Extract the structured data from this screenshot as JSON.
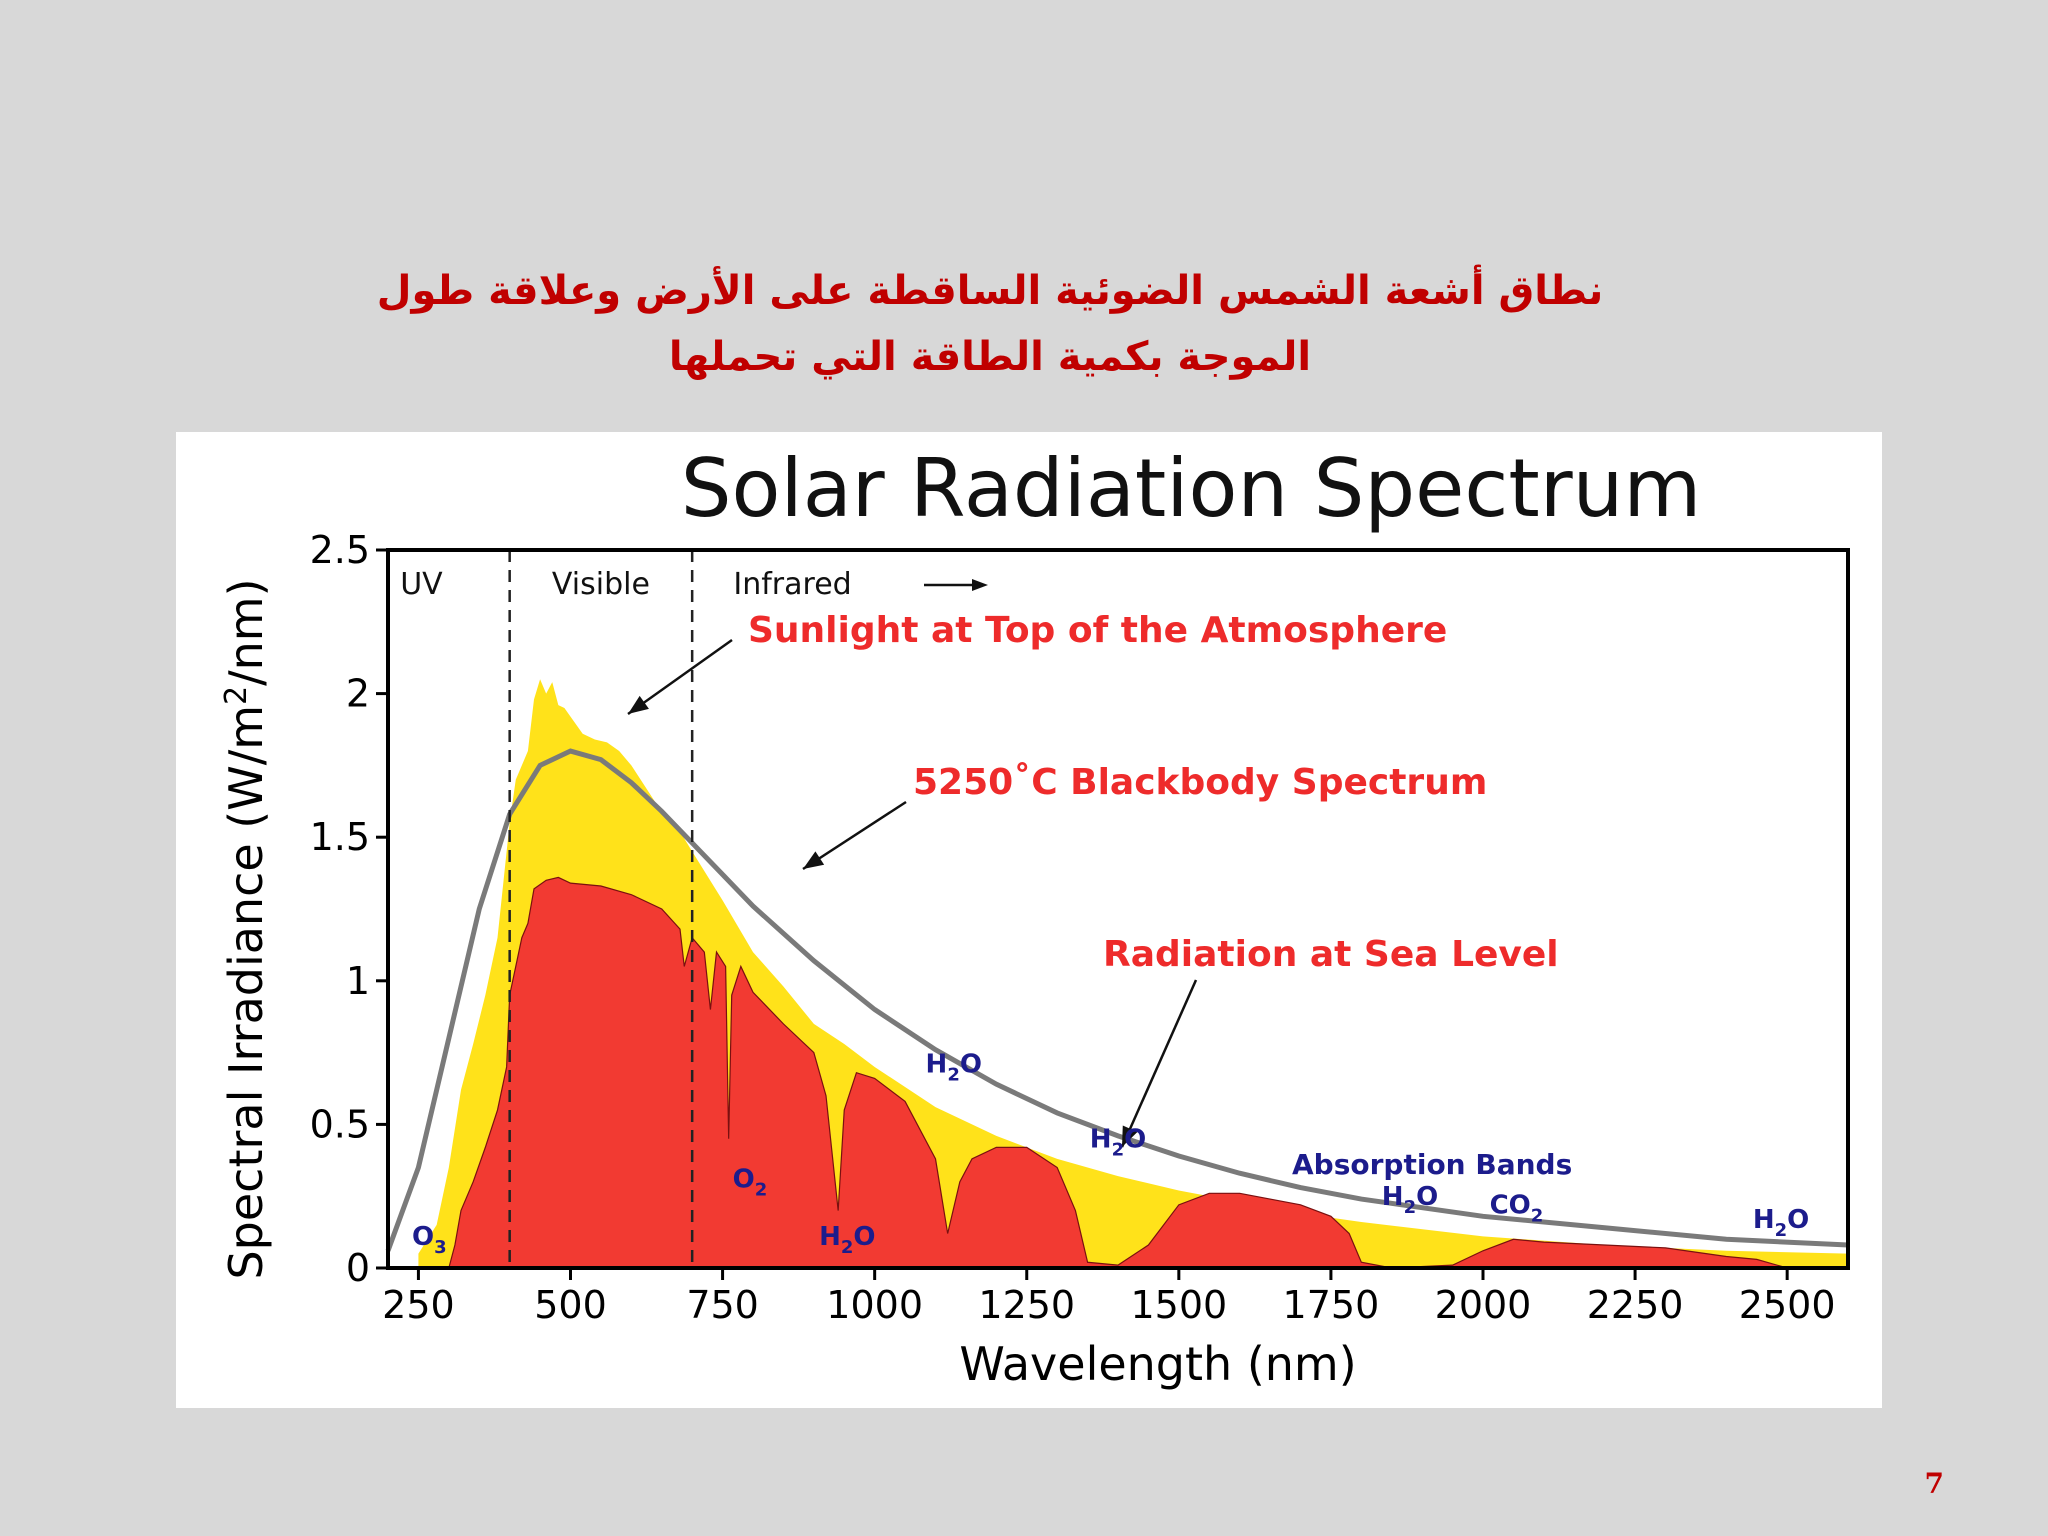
{
  "slide": {
    "title_line1": "نطاق أشعة الشمس الضوئية الساقطة على الأرض وعلاقة طول",
    "title_line2": "الموجة بكمية الطاقة التي تحملها",
    "page_number": "7"
  },
  "colors": {
    "background": "#d8d8d8",
    "title": "#c00000",
    "top_of_atmosphere_fill": "#ffe21a",
    "sea_level_fill": "#f23a32",
    "blackbody_line": "#7a7a7a",
    "label_red": "#ee2b2b",
    "label_blue": "#1c1c8c"
  },
  "chart_data": {
    "type": "area",
    "title": "Solar Radiation Spectrum",
    "xlabel": "Wavelength (nm)",
    "ylabel_main": "Spectral Irradiance (W/m",
    "ylabel_sup": "2",
    "ylabel_tail": "/nm)",
    "xlim": [
      200,
      2600
    ],
    "ylim": [
      0,
      2.5
    ],
    "x_ticks": [
      250,
      500,
      750,
      1000,
      1250,
      1500,
      1750,
      2000,
      2250,
      2500
    ],
    "y_ticks": [
      0,
      0.5,
      1,
      1.5,
      2,
      2.5
    ],
    "y_tick_labels": [
      "0",
      "0.5",
      "1",
      "1.5",
      "2",
      "2.5"
    ],
    "grid": false,
    "regions": [
      {
        "label": "UV",
        "x": 255
      },
      {
        "label": "Visible",
        "x": 550
      },
      {
        "label": "Infrared",
        "x": 865
      }
    ],
    "region_dividers": [
      400,
      700
    ],
    "series": [
      {
        "name": "Sunlight at Top of the Atmosphere",
        "x": [
          250,
          280,
          300,
          320,
          340,
          360,
          380,
          390,
          400,
          410,
          420,
          430,
          440,
          450,
          460,
          470,
          480,
          490,
          500,
          520,
          540,
          560,
          580,
          600,
          640,
          680,
          700,
          750,
          800,
          850,
          900,
          950,
          1000,
          1100,
          1200,
          1300,
          1400,
          1500,
          1600,
          1700,
          1800,
          2000,
          2200,
          2400,
          2600
        ],
        "y": [
          0.05,
          0.15,
          0.35,
          0.62,
          0.78,
          0.95,
          1.15,
          1.35,
          1.55,
          1.7,
          1.75,
          1.8,
          1.98,
          2.05,
          2.0,
          2.04,
          1.96,
          1.95,
          1.92,
          1.86,
          1.84,
          1.83,
          1.8,
          1.75,
          1.62,
          1.52,
          1.45,
          1.28,
          1.1,
          0.98,
          0.85,
          0.78,
          0.7,
          0.56,
          0.46,
          0.38,
          0.32,
          0.27,
          0.23,
          0.19,
          0.16,
          0.11,
          0.08,
          0.06,
          0.05
        ]
      },
      {
        "name": "5250°C Blackbody Spectrum",
        "x": [
          200,
          250,
          300,
          350,
          400,
          450,
          500,
          550,
          600,
          650,
          700,
          750,
          800,
          900,
          1000,
          1100,
          1200,
          1300,
          1400,
          1500,
          1600,
          1700,
          1800,
          2000,
          2200,
          2400,
          2600
        ],
        "y": [
          0.06,
          0.35,
          0.8,
          1.25,
          1.58,
          1.75,
          1.8,
          1.77,
          1.69,
          1.59,
          1.48,
          1.37,
          1.26,
          1.07,
          0.9,
          0.76,
          0.64,
          0.54,
          0.46,
          0.39,
          0.33,
          0.28,
          0.24,
          0.18,
          0.14,
          0.1,
          0.08
        ]
      },
      {
        "name": "Radiation at Sea Level",
        "x": [
          300,
          310,
          320,
          340,
          360,
          380,
          390,
          395,
          400,
          410,
          420,
          430,
          440,
          460,
          480,
          500,
          550,
          600,
          650,
          680,
          687,
          700,
          720,
          730,
          740,
          755,
          760,
          765,
          780,
          800,
          850,
          900,
          920,
          940,
          950,
          970,
          1000,
          1050,
          1100,
          1120,
          1140,
          1160,
          1200,
          1250,
          1300,
          1330,
          1350,
          1400,
          1450,
          1500,
          1550,
          1600,
          1650,
          1700,
          1750,
          1780,
          1800,
          1850,
          1950,
          2000,
          2050,
          2100,
          2200,
          2300,
          2400,
          2450,
          2500
        ],
        "y": [
          0,
          0.08,
          0.2,
          0.3,
          0.42,
          0.55,
          0.65,
          0.7,
          0.95,
          1.05,
          1.15,
          1.2,
          1.32,
          1.35,
          1.36,
          1.34,
          1.33,
          1.3,
          1.25,
          1.18,
          1.05,
          1.15,
          1.1,
          0.9,
          1.1,
          1.05,
          0.45,
          0.95,
          1.05,
          0.96,
          0.85,
          0.75,
          0.6,
          0.2,
          0.55,
          0.68,
          0.66,
          0.58,
          0.38,
          0.12,
          0.3,
          0.38,
          0.42,
          0.42,
          0.35,
          0.2,
          0.02,
          0.01,
          0.08,
          0.22,
          0.26,
          0.26,
          0.24,
          0.22,
          0.18,
          0.12,
          0.02,
          0.0,
          0.01,
          0.06,
          0.1,
          0.09,
          0.08,
          0.07,
          0.04,
          0.03,
          0.0
        ]
      }
    ],
    "annotations": {
      "sunlight": "Sunlight at Top of the Atmosphere",
      "blackbody": "5250˚C Blackbody Spectrum",
      "sea_level": "Radiation at Sea Level",
      "absorption_bands": "Absorption Bands"
    },
    "absorption_labels": [
      {
        "base": "O",
        "sub": "3",
        "x": 268,
        "y": 0.08
      },
      {
        "base": "O",
        "sub": "2",
        "x": 795,
        "y": 0.28
      },
      {
        "base": "H",
        "sub": "2",
        "tail": "O",
        "x": 955,
        "y": 0.08
      },
      {
        "base": "H",
        "sub": "2",
        "tail": "O",
        "x": 1130,
        "y": 0.68
      },
      {
        "base": "H",
        "sub": "2",
        "tail": "O",
        "x": 1400,
        "y": 0.42
      },
      {
        "base": "H",
        "sub": "2",
        "tail": "O",
        "x": 1880,
        "y": 0.22
      },
      {
        "base": "CO",
        "sub": "2",
        "x": 2055,
        "y": 0.19
      },
      {
        "base": "H",
        "sub": "2",
        "tail": "O",
        "x": 2490,
        "y": 0.14
      }
    ]
  }
}
